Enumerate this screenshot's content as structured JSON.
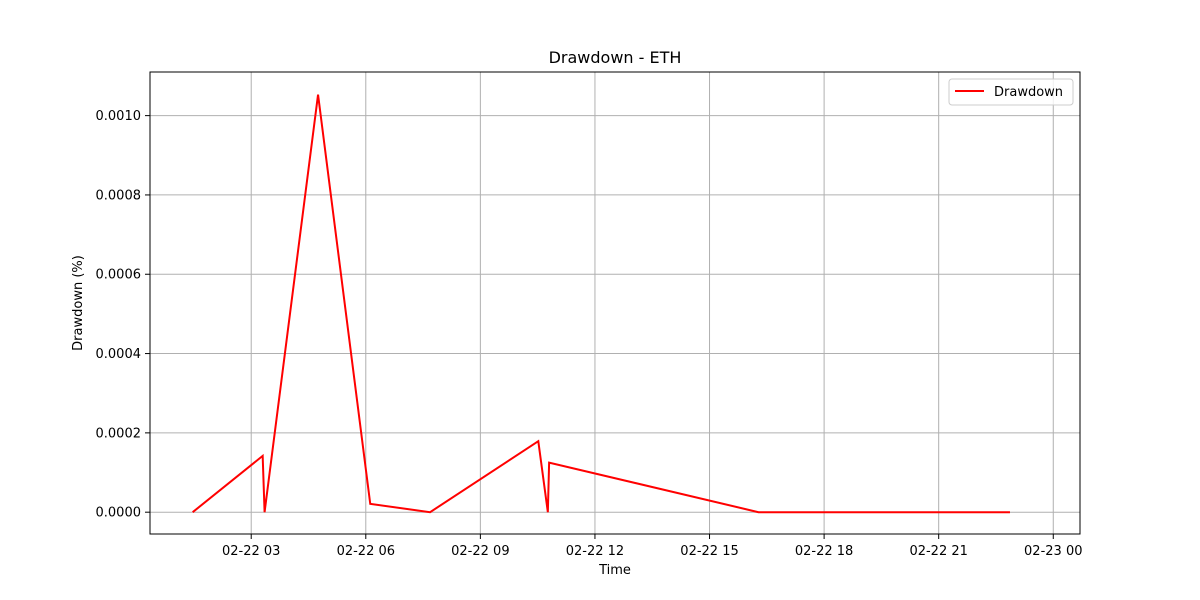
{
  "chart_data": {
    "type": "line",
    "title": "Drawdown - ETH",
    "xlabel": "Time",
    "ylabel": "Drawdown (%)",
    "grid": true,
    "legend_position": "top-right",
    "x_ticks": [
      "02-22 03",
      "02-22 06",
      "02-22 09",
      "02-22 12",
      "02-22 15",
      "02-22 18",
      "02-22 21",
      "02-23 00"
    ],
    "y_ticks": [
      "0.0000",
      "0.0002",
      "0.0004",
      "0.0006",
      "0.0008",
      "0.0010"
    ],
    "ylim": [
      -5.5e-05,
      0.00111
    ],
    "xlim": [
      "2024-02-22 00:21",
      "2024-02-23 00:42"
    ],
    "series": [
      {
        "name": "Drawdown",
        "color": "#ff0000",
        "x": [
          "2024-02-22 01:28",
          "2024-02-22 03:18",
          "2024-02-22 03:21",
          "2024-02-22 04:45",
          "2024-02-22 06:07",
          "2024-02-22 07:41",
          "2024-02-22 10:31",
          "2024-02-22 10:46",
          "2024-02-22 10:48",
          "2024-02-22 16:17",
          "2024-02-22 22:52"
        ],
        "values": [
          0.0,
          0.000142,
          0.0,
          0.001053,
          2.1e-05,
          0.0,
          0.000179,
          0.0,
          0.000125,
          0.0,
          0.0
        ]
      }
    ]
  }
}
